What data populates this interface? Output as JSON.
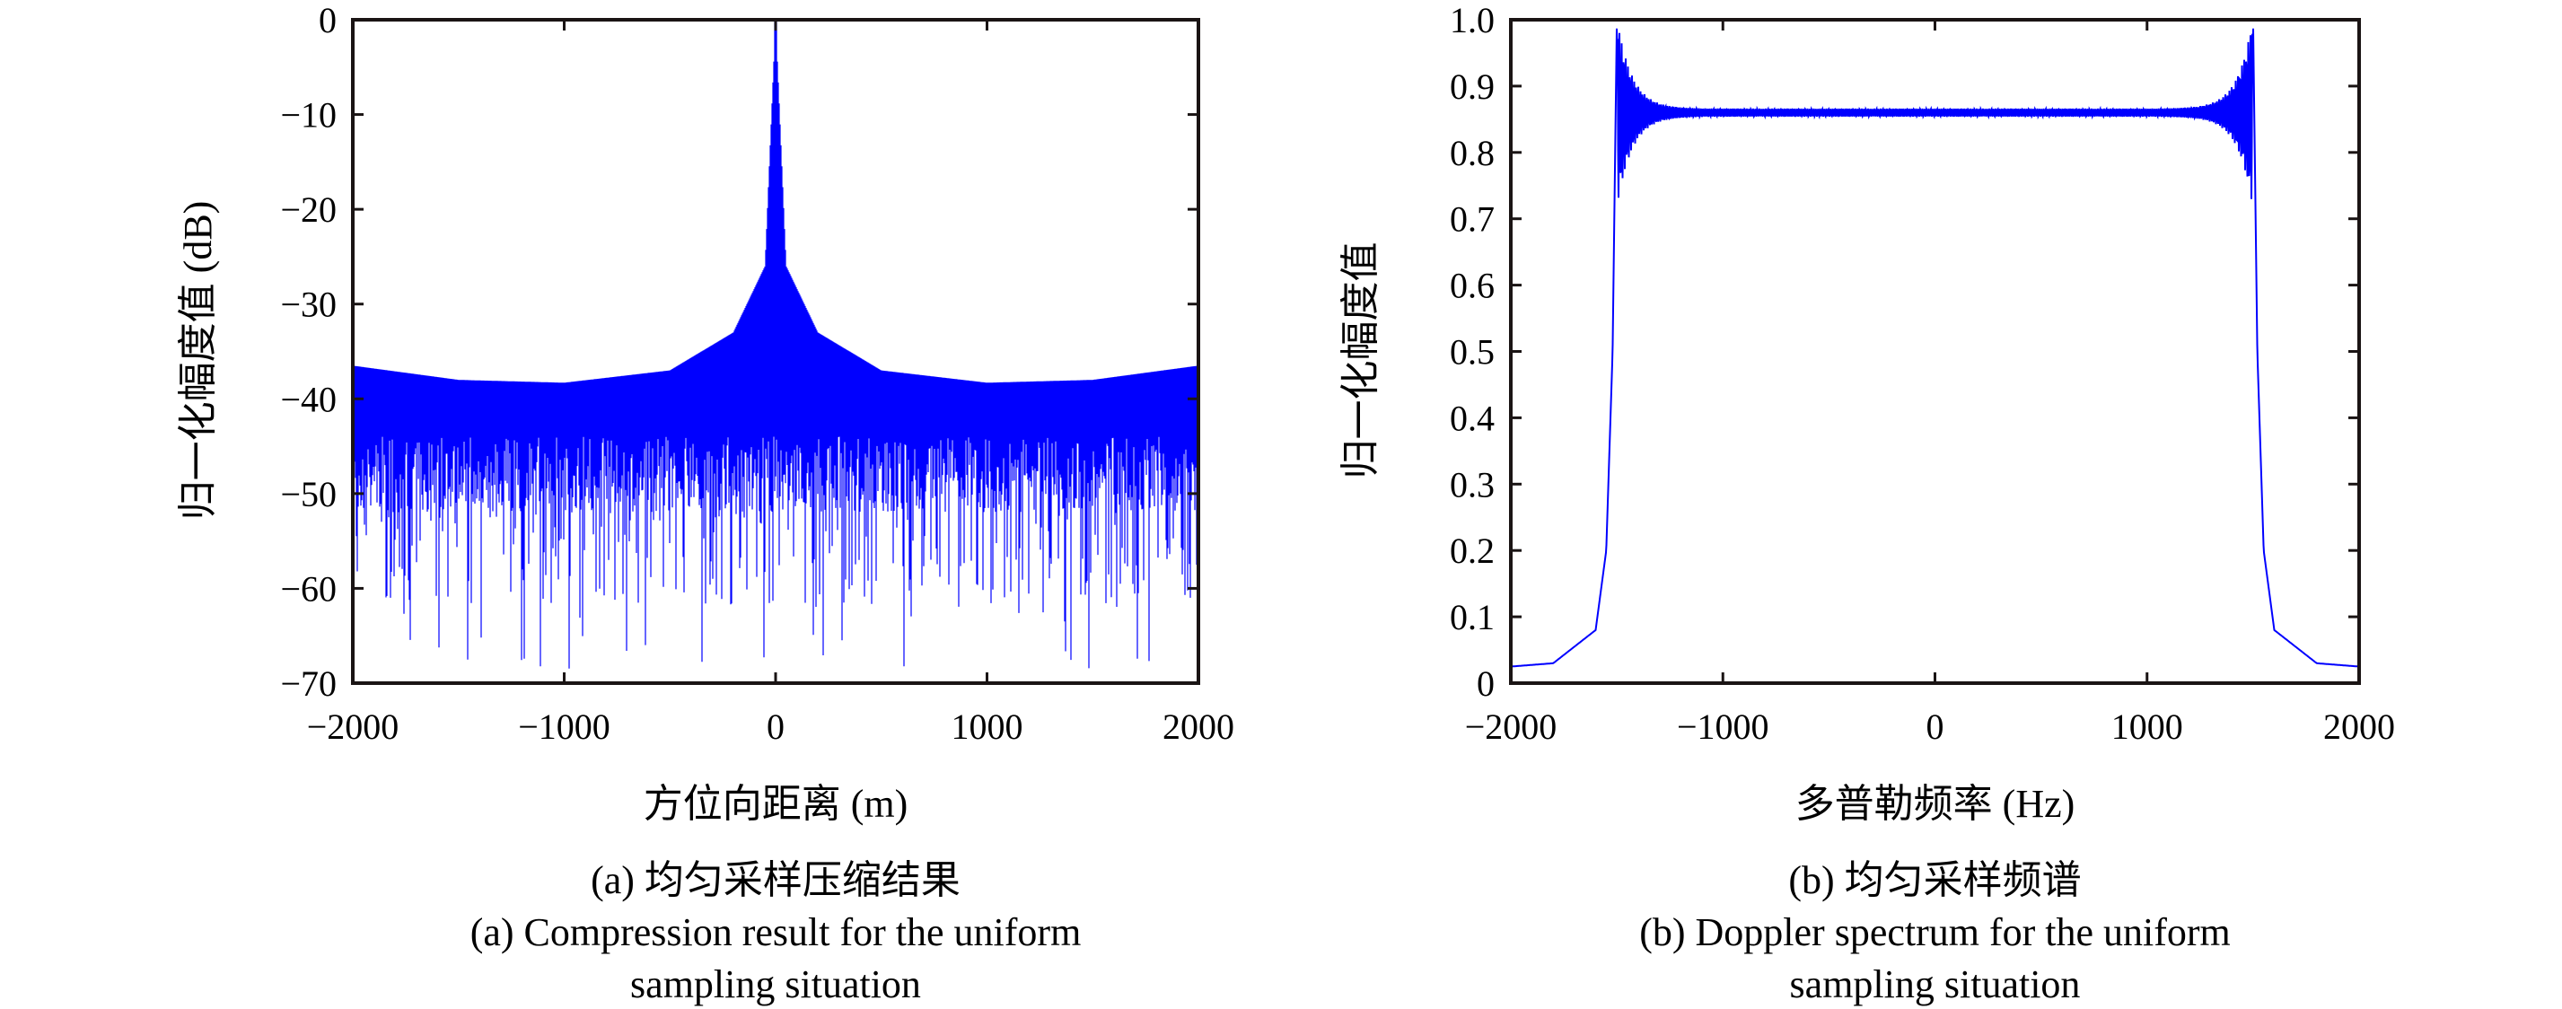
{
  "chart_data": [
    {
      "type": "line",
      "id": "a",
      "xlabel": "方位向距离 (m)",
      "ylabel": "归一化幅度值 (dB)",
      "xlim": [
        -2000,
        2000
      ],
      "ylim": [
        -70,
        0
      ],
      "xticks": [
        -2000,
        -1000,
        0,
        1000,
        2000
      ],
      "xtick_labels": [
        "−2000",
        "−1000",
        "0",
        "1000",
        "2000"
      ],
      "yticks": [
        0,
        -10,
        -20,
        -30,
        -40,
        -50,
        -60,
        -70
      ],
      "ytick_labels": [
        "0",
        "−10",
        "−20",
        "−30",
        "−40",
        "−50",
        "−60",
        "−70"
      ],
      "color": "#0000ff",
      "description": "Dense sidelobe envelope ~-37 dB at edges, ~-38 dB floor, peak 0 dB at 0 m, dips near ±1000 m, troughs down to about -69 dB",
      "envelope_points": [
        [
          -2000,
          -36.5
        ],
        [
          -1500,
          -38
        ],
        [
          -1000,
          -38.3
        ],
        [
          -500,
          -37
        ],
        [
          -200,
          -33
        ],
        [
          -50,
          -26
        ],
        [
          0,
          0
        ],
        [
          50,
          -26
        ],
        [
          200,
          -33
        ],
        [
          500,
          -37
        ],
        [
          1000,
          -38.3
        ],
        [
          1500,
          -38
        ],
        [
          2000,
          -36.5
        ]
      ],
      "caption_cn": "(a) 均匀采样压缩结果",
      "caption_en_1": "(a) Compression result for the uniform",
      "caption_en_2": "sampling situation"
    },
    {
      "type": "line",
      "id": "b",
      "xlabel": "多普勒频率 (Hz)",
      "ylabel": "归一化幅度值",
      "xlim": [
        -2000,
        2000
      ],
      "ylim": [
        0,
        1.0
      ],
      "xticks": [
        -2000,
        -1000,
        0,
        1000,
        2000
      ],
      "xtick_labels": [
        "−2000",
        "−1000",
        "0",
        "1000",
        "2000"
      ],
      "yticks": [
        0,
        0.1,
        0.2,
        0.3,
        0.4,
        0.5,
        0.6,
        0.7,
        0.8,
        0.9,
        1.0
      ],
      "ytick_labels": [
        "0",
        "0.1",
        "0.2",
        "0.3",
        "0.4",
        "0.5",
        "0.6",
        "0.7",
        "0.8",
        "0.9",
        "1.0"
      ],
      "color": "#0000ff",
      "description": "Flat spectrum ~0.86 between -1500 and 1500 Hz with Gibbs ripple up to 1.0 at edges, ~0.025 outside",
      "points": [
        [
          -2000,
          0.025
        ],
        [
          -1800,
          0.03
        ],
        [
          -1600,
          0.08
        ],
        [
          -1550,
          0.2
        ],
        [
          -1520,
          0.5
        ],
        [
          -1500,
          1.0
        ],
        [
          -1400,
          0.86
        ],
        [
          0,
          0.86
        ],
        [
          1400,
          0.86
        ],
        [
          1500,
          1.0
        ],
        [
          1520,
          0.5
        ],
        [
          1550,
          0.2
        ],
        [
          1600,
          0.08
        ],
        [
          1800,
          0.03
        ],
        [
          2000,
          0.025
        ]
      ],
      "caption_cn": "(b) 均匀采样频谱",
      "caption_en_1": "(b) Doppler spectrum for the uniform",
      "caption_en_2": "sampling situation"
    }
  ]
}
